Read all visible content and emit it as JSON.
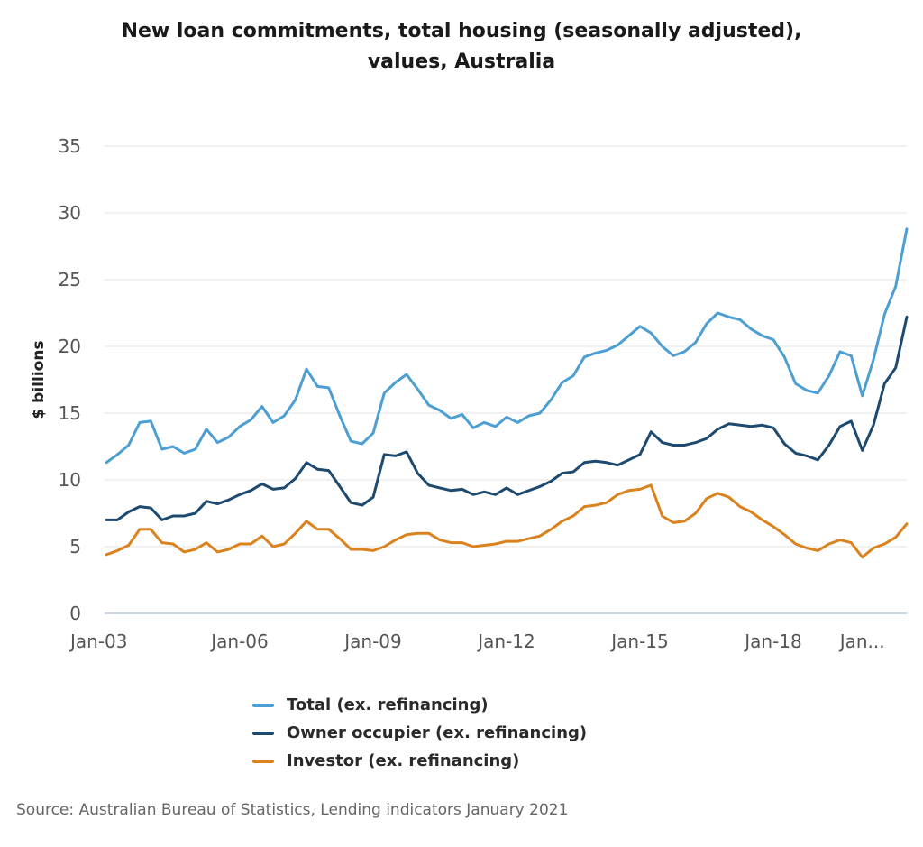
{
  "chart_data": {
    "type": "line",
    "title": "New loan commitments, total housing (seasonally adjusted), values, Australia",
    "xlabel": "",
    "ylabel": "$ billions",
    "ylim": [
      0,
      35
    ],
    "yticks": [
      0,
      5,
      10,
      15,
      20,
      25,
      30,
      35
    ],
    "xlim": [
      "2003-01",
      "2021-01"
    ],
    "xticks": [
      {
        "x": "2003-01",
        "label": "Jan-03"
      },
      {
        "x": "2006-01",
        "label": "Jan-06"
      },
      {
        "x": "2009-01",
        "label": "Jan-09"
      },
      {
        "x": "2012-01",
        "label": "Jan-12"
      },
      {
        "x": "2015-01",
        "label": "Jan-15"
      },
      {
        "x": "2018-01",
        "label": "Jan-18"
      },
      {
        "x": "2020-01",
        "label": "Jan..."
      }
    ],
    "grid": true,
    "legend_position": "bottom",
    "series": [
      {
        "name": "Total (ex. refinancing)",
        "color": "#4d9fd3",
        "points": [
          [
            "2003-01",
            11.3
          ],
          [
            "2003-04",
            11.9
          ],
          [
            "2003-07",
            12.6
          ],
          [
            "2003-10",
            14.3
          ],
          [
            "2004-01",
            14.4
          ],
          [
            "2004-04",
            12.3
          ],
          [
            "2004-07",
            12.5
          ],
          [
            "2004-10",
            12.0
          ],
          [
            "2005-01",
            12.3
          ],
          [
            "2005-04",
            13.8
          ],
          [
            "2005-07",
            12.8
          ],
          [
            "2005-10",
            13.2
          ],
          [
            "2006-01",
            14.0
          ],
          [
            "2006-04",
            14.5
          ],
          [
            "2006-07",
            15.5
          ],
          [
            "2006-10",
            14.3
          ],
          [
            "2007-01",
            14.8
          ],
          [
            "2007-04",
            16.0
          ],
          [
            "2007-07",
            18.3
          ],
          [
            "2007-10",
            17.0
          ],
          [
            "2008-01",
            16.9
          ],
          [
            "2008-04",
            14.8
          ],
          [
            "2008-07",
            12.9
          ],
          [
            "2008-10",
            12.7
          ],
          [
            "2009-01",
            13.5
          ],
          [
            "2009-04",
            16.5
          ],
          [
            "2009-07",
            17.3
          ],
          [
            "2009-10",
            17.9
          ],
          [
            "2010-01",
            16.8
          ],
          [
            "2010-04",
            15.6
          ],
          [
            "2010-07",
            15.2
          ],
          [
            "2010-10",
            14.6
          ],
          [
            "2011-01",
            14.9
          ],
          [
            "2011-04",
            13.9
          ],
          [
            "2011-07",
            14.3
          ],
          [
            "2011-10",
            14.0
          ],
          [
            "2012-01",
            14.7
          ],
          [
            "2012-04",
            14.3
          ],
          [
            "2012-07",
            14.8
          ],
          [
            "2012-10",
            15.0
          ],
          [
            "2013-01",
            16.0
          ],
          [
            "2013-04",
            17.3
          ],
          [
            "2013-07",
            17.8
          ],
          [
            "2013-10",
            19.2
          ],
          [
            "2014-01",
            19.5
          ],
          [
            "2014-04",
            19.7
          ],
          [
            "2014-07",
            20.1
          ],
          [
            "2014-10",
            20.8
          ],
          [
            "2015-01",
            21.5
          ],
          [
            "2015-04",
            21.0
          ],
          [
            "2015-07",
            20.0
          ],
          [
            "2015-10",
            19.3
          ],
          [
            "2016-01",
            19.6
          ],
          [
            "2016-04",
            20.3
          ],
          [
            "2016-07",
            21.7
          ],
          [
            "2016-10",
            22.5
          ],
          [
            "2017-01",
            22.2
          ],
          [
            "2017-04",
            22.0
          ],
          [
            "2017-07",
            21.3
          ],
          [
            "2017-10",
            20.8
          ],
          [
            "2018-01",
            20.5
          ],
          [
            "2018-04",
            19.2
          ],
          [
            "2018-07",
            17.2
          ],
          [
            "2018-10",
            16.7
          ],
          [
            "2019-01",
            16.5
          ],
          [
            "2019-04",
            17.8
          ],
          [
            "2019-07",
            19.6
          ],
          [
            "2019-10",
            19.3
          ],
          [
            "2020-01",
            16.3
          ],
          [
            "2020-04",
            19.0
          ],
          [
            "2020-07",
            22.4
          ],
          [
            "2020-10",
            24.5
          ],
          [
            "2021-01",
            28.8
          ]
        ]
      },
      {
        "name": "Owner occupier (ex. refinancing)",
        "color": "#1d4a6e",
        "points": [
          [
            "2003-01",
            7.0
          ],
          [
            "2003-04",
            7.0
          ],
          [
            "2003-07",
            7.6
          ],
          [
            "2003-10",
            8.0
          ],
          [
            "2004-01",
            7.9
          ],
          [
            "2004-04",
            7.0
          ],
          [
            "2004-07",
            7.3
          ],
          [
            "2004-10",
            7.3
          ],
          [
            "2005-01",
            7.5
          ],
          [
            "2005-04",
            8.4
          ],
          [
            "2005-07",
            8.2
          ],
          [
            "2005-10",
            8.5
          ],
          [
            "2006-01",
            8.9
          ],
          [
            "2006-04",
            9.2
          ],
          [
            "2006-07",
            9.7
          ],
          [
            "2006-10",
            9.3
          ],
          [
            "2007-01",
            9.4
          ],
          [
            "2007-04",
            10.1
          ],
          [
            "2007-07",
            11.3
          ],
          [
            "2007-10",
            10.8
          ],
          [
            "2008-01",
            10.7
          ],
          [
            "2008-04",
            9.5
          ],
          [
            "2008-07",
            8.3
          ],
          [
            "2008-10",
            8.1
          ],
          [
            "2009-01",
            8.7
          ],
          [
            "2009-04",
            11.9
          ],
          [
            "2009-07",
            11.8
          ],
          [
            "2009-10",
            12.1
          ],
          [
            "2010-01",
            10.5
          ],
          [
            "2010-04",
            9.6
          ],
          [
            "2010-07",
            9.4
          ],
          [
            "2010-10",
            9.2
          ],
          [
            "2011-01",
            9.3
          ],
          [
            "2011-04",
            8.9
          ],
          [
            "2011-07",
            9.1
          ],
          [
            "2011-10",
            8.9
          ],
          [
            "2012-01",
            9.4
          ],
          [
            "2012-04",
            8.9
          ],
          [
            "2012-07",
            9.2
          ],
          [
            "2012-10",
            9.5
          ],
          [
            "2013-01",
            9.9
          ],
          [
            "2013-04",
            10.5
          ],
          [
            "2013-07",
            10.6
          ],
          [
            "2013-10",
            11.3
          ],
          [
            "2014-01",
            11.4
          ],
          [
            "2014-04",
            11.3
          ],
          [
            "2014-07",
            11.1
          ],
          [
            "2014-10",
            11.5
          ],
          [
            "2015-01",
            11.9
          ],
          [
            "2015-04",
            13.6
          ],
          [
            "2015-07",
            12.8
          ],
          [
            "2015-10",
            12.6
          ],
          [
            "2016-01",
            12.6
          ],
          [
            "2016-04",
            12.8
          ],
          [
            "2016-07",
            13.1
          ],
          [
            "2016-10",
            13.8
          ],
          [
            "2017-01",
            14.2
          ],
          [
            "2017-04",
            14.1
          ],
          [
            "2017-07",
            14.0
          ],
          [
            "2017-10",
            14.1
          ],
          [
            "2018-01",
            13.9
          ],
          [
            "2018-04",
            12.7
          ],
          [
            "2018-07",
            12.0
          ],
          [
            "2018-10",
            11.8
          ],
          [
            "2019-01",
            11.5
          ],
          [
            "2019-04",
            12.6
          ],
          [
            "2019-07",
            14.0
          ],
          [
            "2019-10",
            14.4
          ],
          [
            "2020-01",
            12.2
          ],
          [
            "2020-04",
            14.1
          ],
          [
            "2020-07",
            17.2
          ],
          [
            "2020-10",
            18.4
          ],
          [
            "2021-01",
            22.2
          ]
        ]
      },
      {
        "name": "Investor (ex. refinancing)",
        "color": "#d9821e",
        "points": [
          [
            "2003-01",
            4.4
          ],
          [
            "2003-04",
            4.7
          ],
          [
            "2003-07",
            5.1
          ],
          [
            "2003-10",
            6.3
          ],
          [
            "2004-01",
            6.3
          ],
          [
            "2004-04",
            5.3
          ],
          [
            "2004-07",
            5.2
          ],
          [
            "2004-10",
            4.6
          ],
          [
            "2005-01",
            4.8
          ],
          [
            "2005-04",
            5.3
          ],
          [
            "2005-07",
            4.6
          ],
          [
            "2005-10",
            4.8
          ],
          [
            "2006-01",
            5.2
          ],
          [
            "2006-04",
            5.2
          ],
          [
            "2006-07",
            5.8
          ],
          [
            "2006-10",
            5.0
          ],
          [
            "2007-01",
            5.2
          ],
          [
            "2007-04",
            6.0
          ],
          [
            "2007-07",
            6.9
          ],
          [
            "2007-10",
            6.3
          ],
          [
            "2008-01",
            6.3
          ],
          [
            "2008-04",
            5.6
          ],
          [
            "2008-07",
            4.8
          ],
          [
            "2008-10",
            4.8
          ],
          [
            "2009-01",
            4.7
          ],
          [
            "2009-04",
            5.0
          ],
          [
            "2009-07",
            5.5
          ],
          [
            "2009-10",
            5.9
          ],
          [
            "2010-01",
            6.0
          ],
          [
            "2010-04",
            6.0
          ],
          [
            "2010-07",
            5.5
          ],
          [
            "2010-10",
            5.3
          ],
          [
            "2011-01",
            5.3
          ],
          [
            "2011-04",
            5.0
          ],
          [
            "2011-07",
            5.1
          ],
          [
            "2011-10",
            5.2
          ],
          [
            "2012-01",
            5.4
          ],
          [
            "2012-04",
            5.4
          ],
          [
            "2012-07",
            5.6
          ],
          [
            "2012-10",
            5.8
          ],
          [
            "2013-01",
            6.3
          ],
          [
            "2013-04",
            6.9
          ],
          [
            "2013-07",
            7.3
          ],
          [
            "2013-10",
            8.0
          ],
          [
            "2014-01",
            8.1
          ],
          [
            "2014-04",
            8.3
          ],
          [
            "2014-07",
            8.9
          ],
          [
            "2014-10",
            9.2
          ],
          [
            "2015-01",
            9.3
          ],
          [
            "2015-04",
            9.6
          ],
          [
            "2015-07",
            7.3
          ],
          [
            "2015-10",
            6.8
          ],
          [
            "2016-01",
            6.9
          ],
          [
            "2016-04",
            7.5
          ],
          [
            "2016-07",
            8.6
          ],
          [
            "2016-10",
            9.0
          ],
          [
            "2017-01",
            8.7
          ],
          [
            "2017-04",
            8.0
          ],
          [
            "2017-07",
            7.6
          ],
          [
            "2017-10",
            7.0
          ],
          [
            "2018-01",
            6.5
          ],
          [
            "2018-04",
            5.9
          ],
          [
            "2018-07",
            5.2
          ],
          [
            "2018-10",
            4.9
          ],
          [
            "2019-01",
            4.7
          ],
          [
            "2019-04",
            5.2
          ],
          [
            "2019-07",
            5.5
          ],
          [
            "2019-10",
            5.3
          ],
          [
            "2020-01",
            4.2
          ],
          [
            "2020-04",
            4.9
          ],
          [
            "2020-07",
            5.2
          ],
          [
            "2020-10",
            5.7
          ],
          [
            "2021-01",
            6.7
          ]
        ]
      }
    ],
    "source": "Source: Australian Bureau of Statistics, Lending indicators January 2021"
  }
}
